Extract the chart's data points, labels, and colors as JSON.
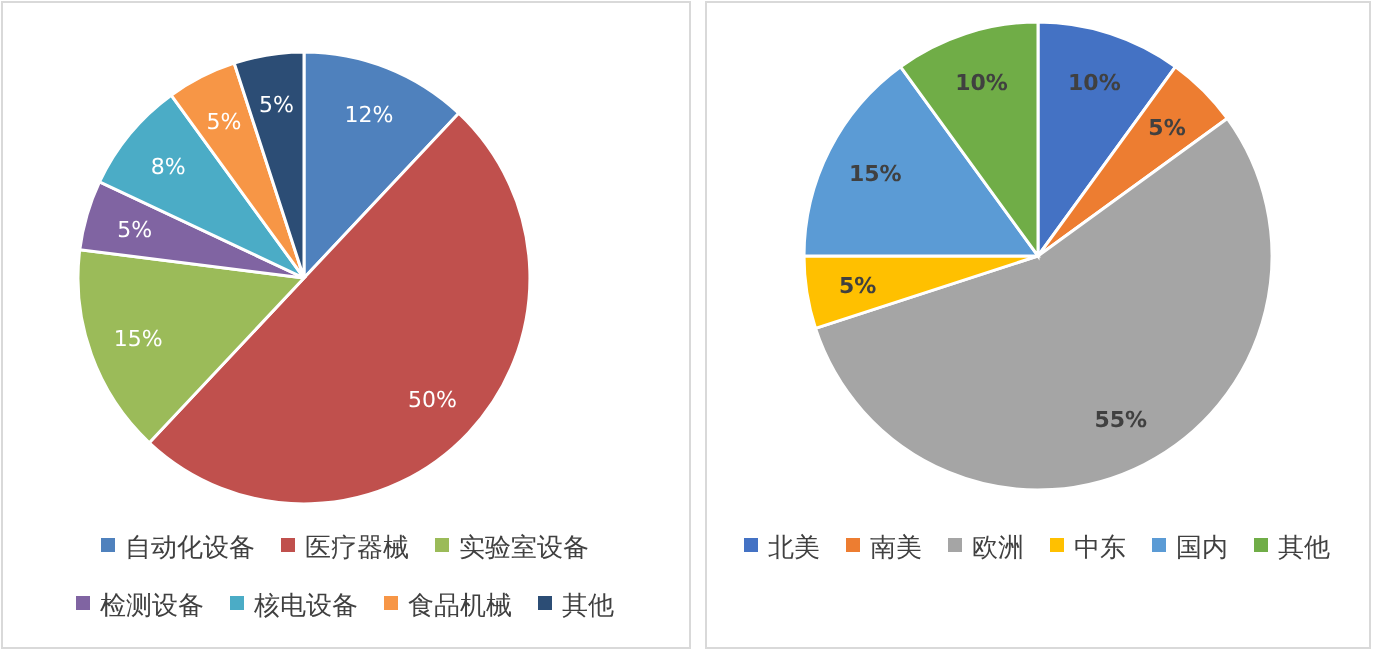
{
  "chart_data": [
    {
      "type": "pie",
      "categories": [
        "自动化设备",
        "医疗器械",
        "实验室设备",
        "检测设备",
        "核电设备",
        "食品机械",
        "其他"
      ],
      "values": [
        12,
        50,
        15,
        5,
        8,
        5,
        5
      ],
      "value_labels": [
        "12%",
        "50%",
        "15%",
        "5%",
        "8%",
        "5%",
        "5%"
      ],
      "colors": [
        "#4f81bd",
        "#c0504d",
        "#9bbb59",
        "#8064a2",
        "#4bacc6",
        "#f79646",
        "#2c4d75"
      ],
      "legend": "bottom"
    },
    {
      "type": "pie",
      "categories": [
        "北美",
        "南美",
        "欧洲",
        "中东",
        "国内",
        "其他"
      ],
      "values": [
        10,
        5,
        55,
        5,
        15,
        10
      ],
      "value_labels": [
        "10%",
        "5%",
        "55%",
        "5%",
        "15%",
        "10%"
      ],
      "colors": [
        "#4472c4",
        "#ed7d31",
        "#a5a5a5",
        "#ffc000",
        "#5b9bd5",
        "#70ad47"
      ],
      "legend": "bottom"
    }
  ]
}
